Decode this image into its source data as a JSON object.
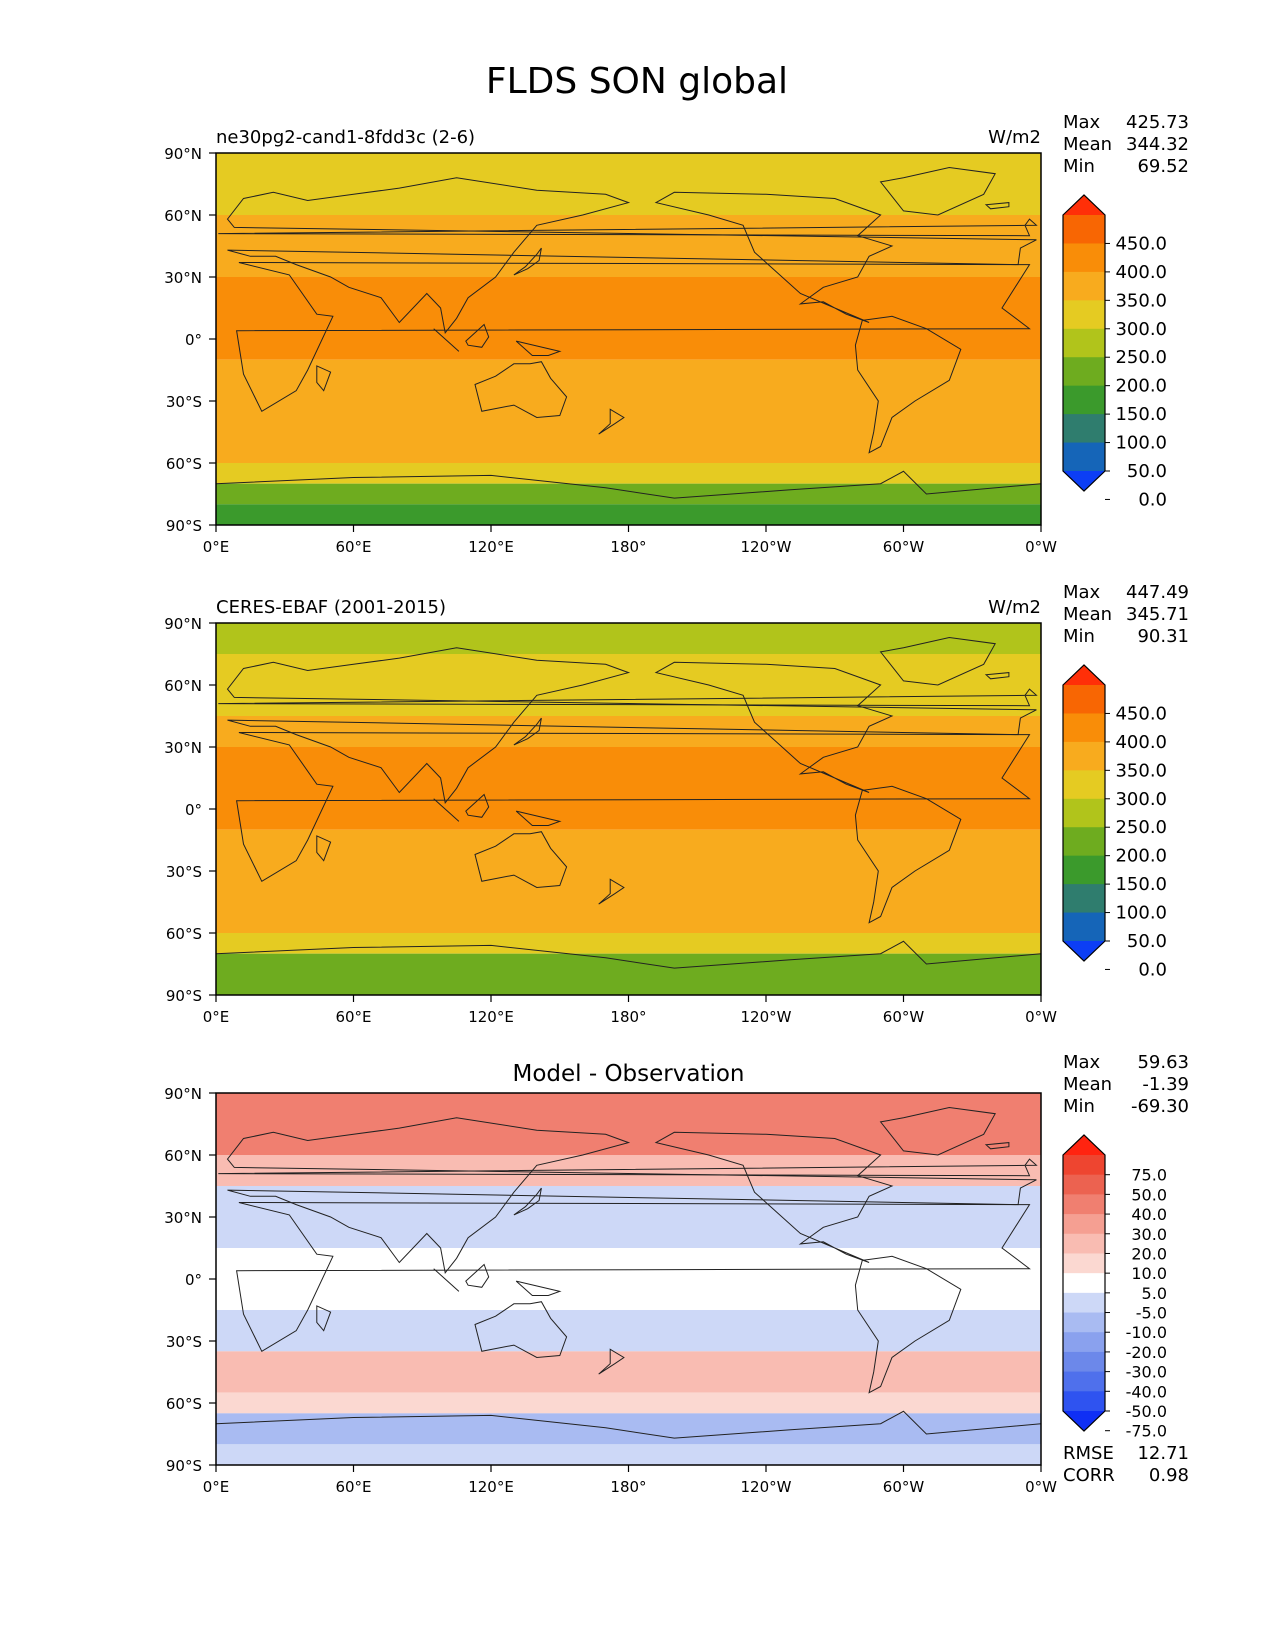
{
  "figure": {
    "title": "FLDS SON global"
  },
  "chart_data": [
    {
      "type": "heatmap",
      "left_title": "ne30pg2-cand1-8fdd3c (2-6)",
      "center_title": "",
      "units": "W/m2",
      "stats": [
        {
          "label": "Max",
          "value": "425.73"
        },
        {
          "label": "Mean",
          "value": "344.32"
        },
        {
          "label": "Min",
          "value": "69.52"
        }
      ],
      "lat_ticks": [
        "90°N",
        "60°N",
        "30°N",
        "0°",
        "30°S",
        "60°S",
        "90°S"
      ],
      "lon_ticks": [
        "0°E",
        "60°E",
        "120°E",
        "180°",
        "120°W",
        "60°W",
        "0°W"
      ],
      "colorbar_ticks": [
        "450.0",
        "400.0",
        "350.0",
        "300.0",
        "250.0",
        "200.0",
        "150.0",
        "100.0",
        "50.0",
        "0.0"
      ],
      "colorbar_colors": [
        "#0c3ef5",
        "#1565b8",
        "#2f7d6e",
        "#3b9a2c",
        "#6eac1f",
        "#b1c41b",
        "#e5cb22",
        "#f8ab1e",
        "#f98d08",
        "#f86603",
        "#ff2f08"
      ],
      "zonal_bands": [
        {
          "lat": [
            60,
            90
          ],
          "value": 275
        },
        {
          "lat": [
            30,
            60
          ],
          "value": 310
        },
        {
          "lat": [
            -10,
            30
          ],
          "value": 370
        },
        {
          "lat": [
            -45,
            -10
          ],
          "value": 330
        },
        {
          "lat": [
            -60,
            -45
          ],
          "value": 310
        },
        {
          "lat": [
            -70,
            -60
          ],
          "value": 270
        },
        {
          "lat": [
            -80,
            -70
          ],
          "value": 160
        },
        {
          "lat": [
            -90,
            -80
          ],
          "value": 120
        }
      ]
    },
    {
      "type": "heatmap",
      "left_title": "CERES-EBAF (2001-2015)",
      "center_title": "",
      "units": "W/m2",
      "stats": [
        {
          "label": "Max",
          "value": "447.49"
        },
        {
          "label": "Mean",
          "value": "345.71"
        },
        {
          "label": "Min",
          "value": "90.31"
        }
      ],
      "lat_ticks": [
        "90°N",
        "60°N",
        "30°N",
        "0°",
        "30°S",
        "60°S",
        "90°S"
      ],
      "lon_ticks": [
        "0°E",
        "60°E",
        "120°E",
        "180°",
        "120°W",
        "60°W",
        "0°W"
      ],
      "colorbar_ticks": [
        "450.0",
        "400.0",
        "350.0",
        "300.0",
        "250.0",
        "200.0",
        "150.0",
        "100.0",
        "50.0",
        "0.0"
      ],
      "colorbar_colors": [
        "#0c3ef5",
        "#1565b8",
        "#2f7d6e",
        "#3b9a2c",
        "#6eac1f",
        "#b1c41b",
        "#e5cb22",
        "#f8ab1e",
        "#f98d08",
        "#f86603",
        "#ff2f08"
      ],
      "zonal_bands": [
        {
          "lat": [
            75,
            90
          ],
          "value": 225
        },
        {
          "lat": [
            45,
            75
          ],
          "value": 270
        },
        {
          "lat": [
            30,
            45
          ],
          "value": 320
        },
        {
          "lat": [
            -10,
            30
          ],
          "value": 375
        },
        {
          "lat": [
            -45,
            -10
          ],
          "value": 330
        },
        {
          "lat": [
            -60,
            -45
          ],
          "value": 300
        },
        {
          "lat": [
            -70,
            -60
          ],
          "value": 260
        },
        {
          "lat": [
            -90,
            -70
          ],
          "value": 160
        }
      ]
    },
    {
      "type": "heatmap",
      "left_title": "",
      "center_title": "Model - Observation",
      "units": "",
      "stats": [
        {
          "label": "Max",
          "value": "59.63"
        },
        {
          "label": "Mean",
          "value": "-1.39"
        },
        {
          "label": "Min",
          "value": "-69.30"
        }
      ],
      "extra_stats": [
        {
          "label": "RMSE",
          "value": "12.71"
        },
        {
          "label": "CORR",
          "value": "0.98"
        }
      ],
      "lat_ticks": [
        "90°N",
        "60°N",
        "30°N",
        "0°",
        "30°S",
        "60°S",
        "90°S"
      ],
      "lon_ticks": [
        "0°E",
        "60°E",
        "120°E",
        "180°",
        "120°W",
        "60°W",
        "0°W"
      ],
      "colorbar_ticks": [
        "75.0",
        "50.0",
        "40.0",
        "30.0",
        "20.0",
        "10.0",
        "5.0",
        "-5.0",
        "-10.0",
        "-20.0",
        "-30.0",
        "-40.0",
        "-50.0",
        "-75.0"
      ],
      "colorbar_colors": [
        "#0f2ff5",
        "#2f53f0",
        "#4f70ec",
        "#6c88ea",
        "#8aa1ee",
        "#a9bbf2",
        "#cdd8f7",
        "#ffffff",
        "#fbd8d1",
        "#f9bcb2",
        "#f59f92",
        "#f07f70",
        "#ec6250",
        "#ee4530",
        "#ff2410"
      ],
      "zonal_bands": [
        {
          "lat": [
            60,
            90
          ],
          "value": 35
        },
        {
          "lat": [
            45,
            60
          ],
          "value": 12
        },
        {
          "lat": [
            15,
            45
          ],
          "value": -8
        },
        {
          "lat": [
            -15,
            15
          ],
          "value": 0
        },
        {
          "lat": [
            -35,
            -15
          ],
          "value": -8
        },
        {
          "lat": [
            -55,
            -35
          ],
          "value": 12
        },
        {
          "lat": [
            -65,
            -55
          ],
          "value": 6
        },
        {
          "lat": [
            -80,
            -65
          ],
          "value": -15
        },
        {
          "lat": [
            -90,
            -80
          ],
          "value": -8
        }
      ]
    }
  ]
}
